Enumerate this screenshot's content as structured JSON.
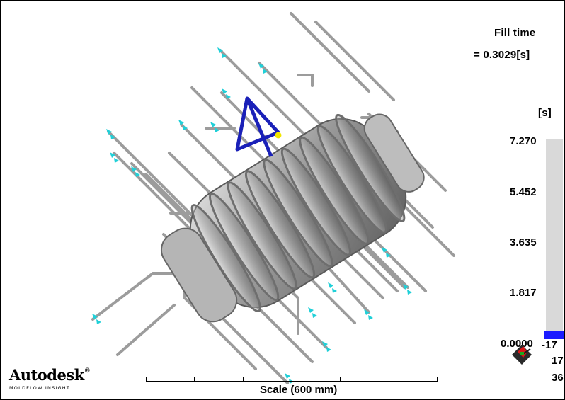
{
  "result": {
    "title": "Fill time",
    "value": "= 0.3029[s]",
    "unit": "[s]"
  },
  "legend": {
    "ticks": [
      "7.270",
      "5.452",
      "3.635",
      "1.817",
      "0.0000"
    ],
    "fill_fraction": 0.042,
    "bar_color": "#1b1bff",
    "track_color": "#d9d9d9"
  },
  "branding": {
    "logo": "Autodesk",
    "registered": "®",
    "subtitle": "MOLDFLOW INSIGHT"
  },
  "scale": {
    "label": "Scale (600 mm)"
  },
  "axis_labels": [
    "-17",
    "17",
    "36"
  ],
  "colors": {
    "model": "#8f8f8f",
    "channel": "#9a9a9a",
    "inlet": "#20d0d8",
    "gate_marker": "#1a20b8",
    "injection_point": "#f2e600"
  },
  "icons": [
    "triad-axes-icon"
  ]
}
